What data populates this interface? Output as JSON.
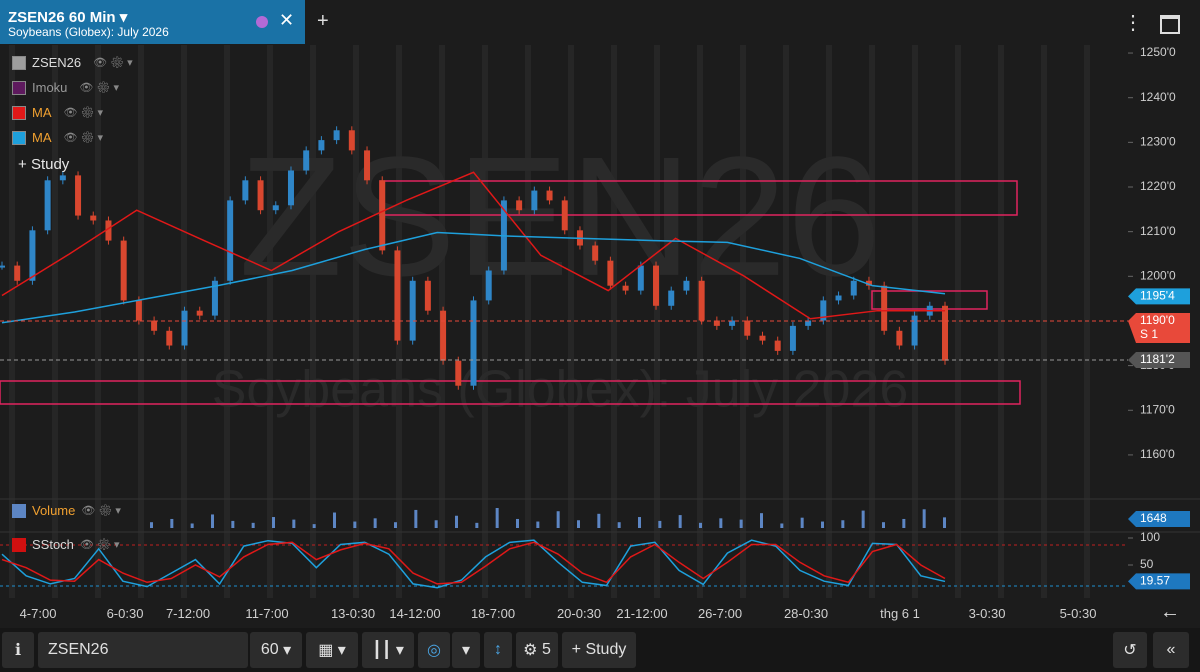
{
  "header": {
    "tab_title": "ZSEN26 60 Min",
    "description": "Soybeans (Globex): July 2026"
  },
  "legend": [
    {
      "name": "ZSEN26",
      "color": "#9e9e9e"
    },
    {
      "name": "Imoku",
      "color": "#5e1a5e"
    },
    {
      "name": "MA",
      "color": "#e01818"
    },
    {
      "name": "MA",
      "color": "#1ea0dc"
    }
  ],
  "add_study": "Study",
  "chart_data": [
    {
      "type": "candlestick",
      "symbol": "ZSEN26",
      "values": [
        1202.4,
        1199.0,
        1210.3,
        1221.5,
        1222.6,
        1213.6,
        1212.5,
        1208.0,
        1194.6,
        1190.1,
        1187.8,
        1184.5,
        1192.3,
        1191.2,
        1199.0,
        1217.0,
        1221.5,
        1214.8,
        1215.9,
        1223.7,
        1228.2,
        1230.5,
        1232.7,
        1228.2,
        1221.5,
        1205.8,
        1185.6,
        1199.0,
        1192.3,
        1181.1,
        1175.5,
        1194.6,
        1201.3,
        1217.0,
        1214.8,
        1219.2,
        1217.0,
        1210.3,
        1206.9,
        1203.5,
        1197.9,
        1196.8,
        1202.4,
        1193.4,
        1196.8,
        1199.0,
        1190.1,
        1188.9,
        1190.1,
        1186.7,
        1185.6,
        1183.3,
        1188.9,
        1190.1,
        1194.6,
        1195.7,
        1199.0,
        1197.9,
        1187.8,
        1184.5,
        1191.2,
        1193.4,
        1181.1
      ],
      "color_up": "#2f86c8",
      "color_down": "#d9472f",
      "series": [
        {
          "name": "MA",
          "color": "#e01818",
          "values": [
            1195.7,
            1205.0,
            1214.8,
            1208.0,
            1201.3,
            1210.0,
            1217.0,
            1223.3,
            1204.7,
            1196.8,
            1208.5,
            1200.2,
            1190.5,
            1192.3,
            1192.3
          ]
        },
        {
          "name": "MA",
          "color": "#1ea0dc",
          "values": [
            1189.6,
            1192.0,
            1195.0,
            1198.0,
            1201.3,
            1206.0,
            1209.8,
            1209.0,
            1208.5,
            1208.0,
            1207.6,
            1204.0,
            1197.9,
            1196.1
          ]
        }
      ],
      "ylim": [
        1150.8,
        1251.8
      ],
      "yticks": [
        {
          "value": 1160,
          "label": "1160'0"
        },
        {
          "value": 1170,
          "label": "1170'0"
        },
        {
          "value": 1180,
          "label": "1180'0"
        },
        {
          "value": 1190,
          "label": "1190'0"
        },
        {
          "value": 1200,
          "label": "1200'0"
        },
        {
          "value": 1210,
          "label": "1210'0"
        },
        {
          "value": 1220,
          "label": "1220'0"
        },
        {
          "value": 1230,
          "label": "1230'0"
        },
        {
          "value": 1240,
          "label": "1240'0"
        },
        {
          "value": 1250,
          "label": "1250'0"
        }
      ],
      "price_labels": [
        {
          "value": 1195.5,
          "label": "1195'4",
          "color": "#1ea0dc"
        },
        {
          "value": 1190,
          "label": "1190'0",
          "sublabel": "S 1",
          "color": "#e8493a"
        },
        {
          "value": 1181.25,
          "label": "1181'2",
          "color": "#555555"
        }
      ]
    },
    {
      "type": "bar",
      "title": "Volume",
      "color": "#5d86c4",
      "values": [
        900,
        1400,
        700,
        2100,
        1100,
        800,
        1700,
        1300,
        600,
        2400,
        1000,
        1500,
        900,
        2800,
        1200,
        1900,
        800,
        3100,
        1400,
        1000,
        2600,
        1200,
        2200,
        900,
        1700,
        1100,
        2000,
        800,
        1500,
        1300,
        2300,
        700,
        1600,
        1000,
        1200,
        2700,
        900,
        1400,
        2900,
        1648
      ]
    },
    {
      "type": "line",
      "title": "SStoch",
      "ylim": [
        0,
        100
      ],
      "yticks": [
        100,
        50
      ],
      "series": [
        {
          "color": "#1ea0dc",
          "values": [
            70,
            30,
            15,
            25,
            80,
            20,
            10,
            35,
            60,
            15,
            85,
            95,
            90,
            45,
            88,
            92,
            70,
            15,
            8,
            22,
            65,
            92,
            96,
            55,
            18,
            12,
            85,
            92,
            40,
            14,
            72,
            96,
            85,
            40,
            20,
            12,
            90,
            88,
            30,
            19.57
          ]
        },
        {
          "color": "#e01818",
          "values": [
            60,
            45,
            22,
            20,
            60,
            35,
            18,
            25,
            50,
            28,
            65,
            88,
            92,
            60,
            78,
            90,
            80,
            35,
            15,
            18,
            48,
            80,
            92,
            70,
            35,
            18,
            65,
            88,
            55,
            25,
            55,
            88,
            88,
            55,
            30,
            18,
            75,
            88,
            50,
            25
          ]
        }
      ]
    }
  ],
  "x_axis_labels": [
    "4-7:00",
    "6-0:30",
    "7-12:00",
    "11-7:00",
    "13-0:30",
    "14-12:00",
    "18-7:00",
    "20-0:30",
    "21-12:00",
    "26-7:00",
    "28-0:30",
    "thg 6 1",
    "3-0:30",
    "5-0:30"
  ],
  "toolbar": {
    "symbol": "ZSEN26",
    "interval": "60",
    "studies_count": "5",
    "study": "Study"
  }
}
